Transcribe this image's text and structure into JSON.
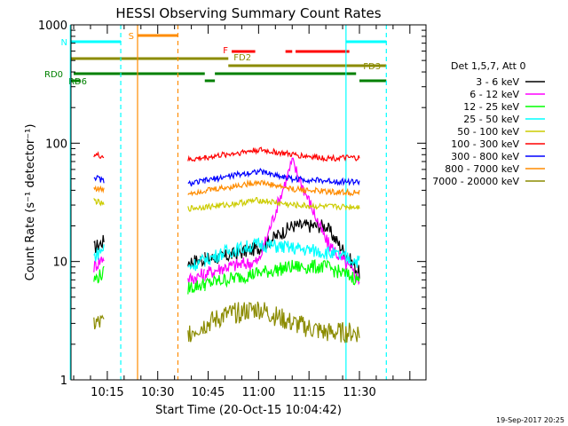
{
  "chart_data": {
    "type": "line",
    "title": "HESSI Observing Summary Count Rates",
    "xlabel": "Start Time (20-Oct-15 10:04:42)",
    "ylabel": "Count Rate (s⁻¹ detector⁻¹)",
    "yscale": "log",
    "ylim": [
      1,
      1000
    ],
    "xlim_minutes": [
      10.07,
      11.83
    ],
    "x_ticks": [
      "10:15",
      "10:30",
      "10:45",
      "11:00",
      "11:15",
      "11:30"
    ],
    "y_ticks": [
      "1",
      "10",
      "100",
      "1000"
    ],
    "timestamp": "19-Sep-2017 20:25",
    "legend": {
      "header": "Det 1,5,7, Att 0",
      "position": "right",
      "entries": [
        {
          "label": "3 - 6 keV",
          "color": "#000000"
        },
        {
          "label": "6 - 12 keV",
          "color": "#ff00ff"
        },
        {
          "label": "12 - 25 keV",
          "color": "#00ff00"
        },
        {
          "label": "25 - 50 keV",
          "color": "#00ffff"
        },
        {
          "label": "50 - 100 keV",
          "color": "#cccc00"
        },
        {
          "label": "100 - 300 keV",
          "color": "#ff0000"
        },
        {
          "label": "300 - 800 keV",
          "color": "#0000ff"
        },
        {
          "label": "800 - 7000 keV",
          "color": "#ff8c00"
        },
        {
          "label": "7000 - 20000 keV",
          "color": "#8b8b00"
        }
      ]
    },
    "data_segments": [
      {
        "start": "10:11",
        "end": "10:14"
      },
      {
        "start": "10:39",
        "end": "10:44"
      },
      {
        "start": "10:44",
        "end": "11:30"
      }
    ],
    "series": [
      {
        "name": "3 - 6 keV",
        "x": [
          "10:11",
          "10:14",
          "10:39",
          "10:50",
          "11:00",
          "11:10",
          "11:20",
          "11:30"
        ],
        "values": [
          13,
          15,
          10,
          11,
          13,
          20,
          20,
          8
        ]
      },
      {
        "name": "6 - 12 keV",
        "x": [
          "10:11",
          "10:14",
          "10:39",
          "10:50",
          "11:00",
          "11:10",
          "11:20",
          "11:30"
        ],
        "values": [
          9,
          11,
          7,
          9,
          10,
          70,
          15,
          7
        ]
      },
      {
        "name": "12 - 25 keV",
        "x": [
          "10:11",
          "10:14",
          "10:39",
          "10:50",
          "11:00",
          "11:10",
          "11:20",
          "11:30"
        ],
        "values": [
          7,
          8,
          6,
          7,
          8,
          9,
          9,
          7
        ]
      },
      {
        "name": "25 - 50 keV",
        "x": [
          "10:11",
          "10:14",
          "10:39",
          "10:50",
          "11:00",
          "11:10",
          "11:20",
          "11:30"
        ],
        "values": [
          11,
          13,
          9,
          12,
          14,
          13,
          12,
          10
        ]
      },
      {
        "name": "50 - 100 keV",
        "x": [
          "10:11",
          "10:14",
          "10:39",
          "10:50",
          "11:00",
          "11:10",
          "11:20",
          "11:30"
        ],
        "values": [
          33,
          30,
          28,
          30,
          33,
          30,
          29,
          29
        ]
      },
      {
        "name": "100 - 300 keV",
        "x": [
          "10:11",
          "10:14",
          "10:39",
          "10:50",
          "11:00",
          "11:10",
          "11:20",
          "11:30"
        ],
        "values": [
          80,
          77,
          72,
          80,
          88,
          80,
          75,
          75
        ]
      },
      {
        "name": "300 - 800 keV",
        "x": [
          "10:11",
          "10:14",
          "10:39",
          "10:50",
          "11:00",
          "11:10",
          "11:20",
          "11:30"
        ],
        "values": [
          52,
          48,
          45,
          52,
          58,
          50,
          48,
          47
        ]
      },
      {
        "name": "800 - 7000 keV",
        "x": [
          "10:11",
          "10:14",
          "10:39",
          "10:50",
          "11:00",
          "11:10",
          "11:20",
          "11:30"
        ],
        "values": [
          42,
          40,
          38,
          42,
          47,
          41,
          39,
          38
        ]
      },
      {
        "name": "7000 - 20000 keV",
        "x": [
          "10:11",
          "10:14",
          "10:39",
          "10:50",
          "11:00",
          "11:10",
          "11:20",
          "11:30"
        ],
        "values": [
          3,
          3,
          2.5,
          3.5,
          4,
          3,
          2.5,
          2.5
        ]
      }
    ],
    "flag_bars": [
      {
        "label": "S",
        "color": "#ff8c00",
        "start": "10:24",
        "end": "10:36"
      },
      {
        "label": "N",
        "color": "#00ffff",
        "start": "10:04",
        "end": "10:19"
      },
      {
        "label": "",
        "color": "#00ffff",
        "start": "11:26",
        "end": "11:38"
      },
      {
        "label": "F",
        "color": "#ff0000",
        "start": "10:52",
        "end": "10:59"
      },
      {
        "label": "",
        "color": "#ff0000",
        "start": "11:08",
        "end": "11:10"
      },
      {
        "label": "",
        "color": "#ff0000",
        "start": "11:11",
        "end": "11:27"
      },
      {
        "label": "FD2",
        "color": "#8b8b00",
        "start": "10:04",
        "end": "10:51"
      },
      {
        "label": "FD3",
        "color": "#8b8b00",
        "start": "10:51",
        "end": "11:38"
      },
      {
        "label": "RD0",
        "color": "#008000",
        "start": "10:05",
        "end": "10:44"
      },
      {
        "label": "",
        "color": "#008000",
        "start": "10:47",
        "end": "11:29"
      },
      {
        "label": "RD6",
        "color": "#008000",
        "start": "10:04",
        "end": "10:07"
      },
      {
        "label": "",
        "color": "#008000",
        "start": "10:44",
        "end": "10:47"
      },
      {
        "label": "",
        "color": "#008000",
        "start": "11:30",
        "end": "11:38"
      }
    ],
    "vertical_markers": [
      {
        "time": "10:04",
        "color": "#00ffff",
        "style": "solid"
      },
      {
        "time": "10:19",
        "color": "#00ffff",
        "style": "dashed"
      },
      {
        "time": "10:24",
        "color": "#ff8c00",
        "style": "solid"
      },
      {
        "time": "10:36",
        "color": "#ff8c00",
        "style": "dashed"
      },
      {
        "time": "11:26",
        "color": "#00ffff",
        "style": "solid"
      },
      {
        "time": "11:38",
        "color": "#00ffff",
        "style": "dashed"
      }
    ]
  }
}
